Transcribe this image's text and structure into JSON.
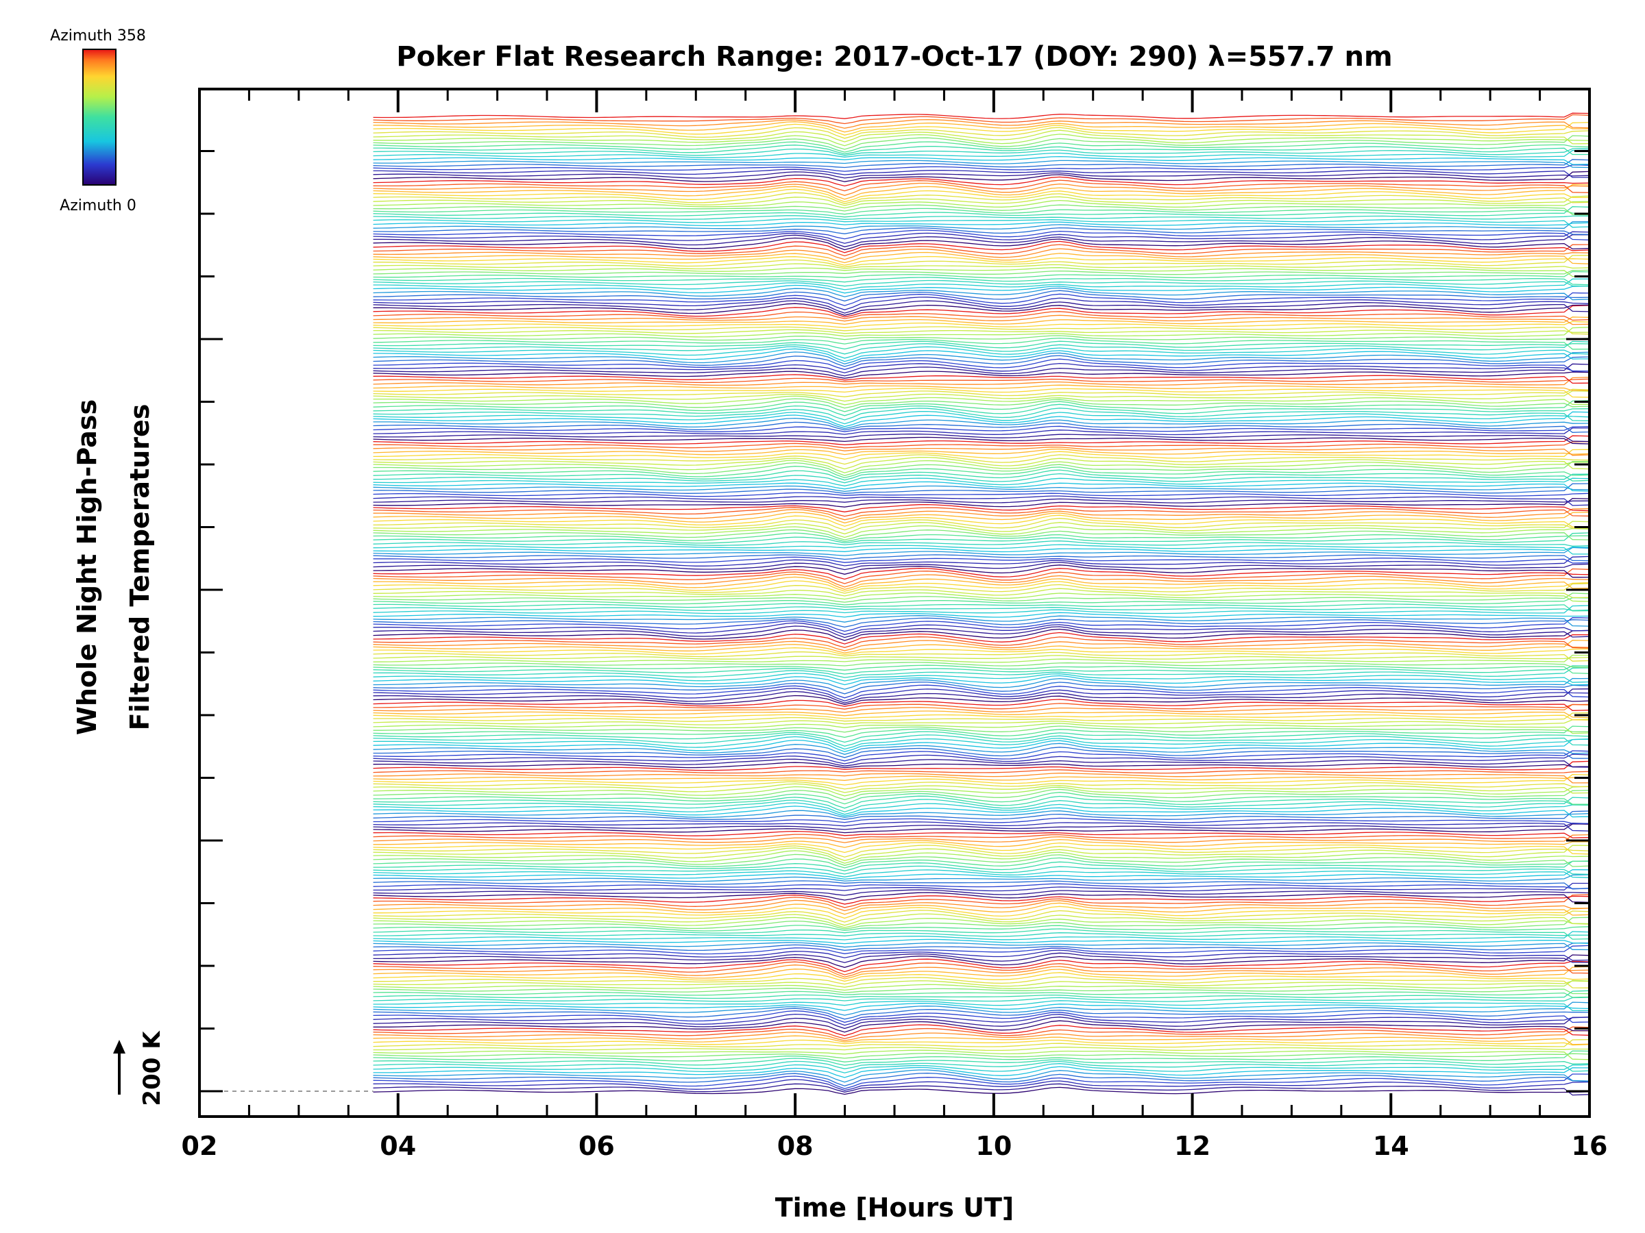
{
  "chart_data": {
    "type": "line",
    "title": "Poker Flat Research Range: 2017-Oct-17 (DOY: 290) λ=557.7 nm",
    "xlabel": "Time [Hours UT]",
    "ylabel_line1": "Whole Night High-Pass",
    "ylabel_line2": "Filtered Temperatures",
    "xlim": [
      2,
      16
    ],
    "x_ticks": [
      "02",
      "04",
      "06",
      "08",
      "10",
      "12",
      "14",
      "16"
    ],
    "data_start_hour": 3.75,
    "data_end_hour": 16,
    "scale_bar_label": "200 K",
    "colorbar": {
      "top_label": "Azimuth 358",
      "bottom_label": "Azimuth 0",
      "colormap": "rainbow",
      "min": 0,
      "max": 358
    },
    "num_traces": 300,
    "traces_per_color_cycle": 20,
    "grid": false,
    "legend": "colorbar top-left",
    "colors": {
      "low": "#2b0a8f",
      "mid_low": "#1ecfd2",
      "mid": "#a8e85a",
      "mid_high": "#ffd23a",
      "high": "#e8231a"
    }
  }
}
